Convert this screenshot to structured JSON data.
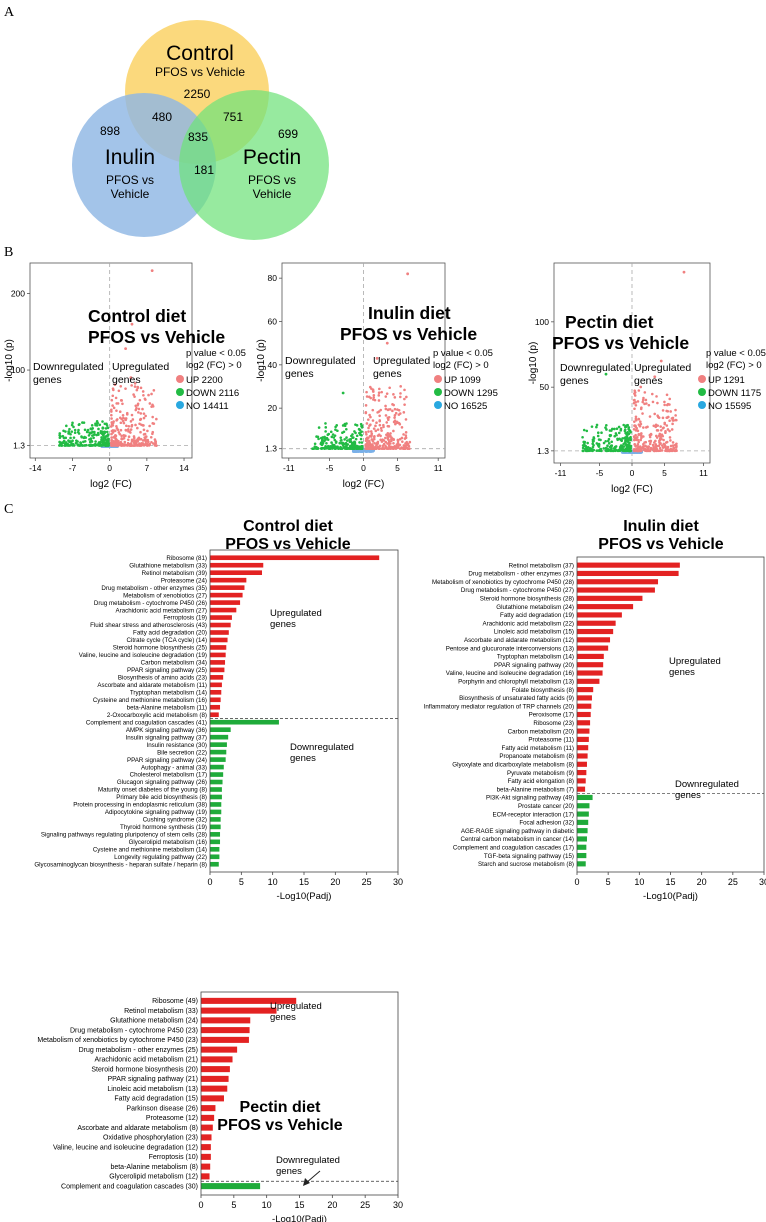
{
  "panel_labels": [
    "A",
    "B",
    "C"
  ],
  "venn": {
    "sets": [
      {
        "name": "Control",
        "sub": [
          "PFOS vs Vehicle"
        ],
        "color": "#fbd56f"
      },
      {
        "name": "Inulin",
        "sub": [
          "PFOS vs",
          "Vehicle"
        ],
        "color": "#8fb7e4"
      },
      {
        "name": "Pectin",
        "sub": [
          "PFOS vs",
          "Vehicle"
        ],
        "color": "#6fe27a"
      }
    ],
    "counts": {
      "control_only": "2250",
      "inulin_only": "898",
      "pectin_only": "699",
      "control_inulin": "480",
      "control_pectin": "751",
      "inulin_pectin": "181",
      "all": "835"
    }
  },
  "volcano_common": {
    "xlabel": "log2 (FC)",
    "ylabel": "-log10 (p)",
    "down_label": [
      "Downregulated",
      "genes"
    ],
    "up_label": [
      "Upregulated",
      "genes"
    ],
    "criteria": [
      "p value < 0.05",
      "log2 (FC) > 0"
    ],
    "up_color": "#f08080",
    "down_color": "#22bb44",
    "no_color": "#7ab0e8"
  },
  "volcanos": [
    {
      "title": [
        "Control diet",
        "PFOS vs Vehicle"
      ],
      "xticks": [
        -14,
        -7,
        0,
        7,
        14
      ],
      "xlim": [
        -15,
        15.5
      ],
      "yticks": [
        1.3,
        100,
        200
      ],
      "ylim": [
        -15,
        240
      ],
      "legend": [
        "UP 2200",
        "DOWN 2116",
        "NO 14411"
      ],
      "outliers": [
        [
          8,
          230
        ],
        [
          4.2,
          160
        ],
        [
          3,
          128
        ],
        [
          4,
          90
        ]
      ]
    },
    {
      "title": [
        "Inulin diet",
        "PFOS vs Vehicle"
      ],
      "xticks": [
        -11,
        -5,
        0,
        5,
        11
      ],
      "xlim": [
        -12,
        12
      ],
      "yticks": [
        1.3,
        20,
        40,
        60,
        80
      ],
      "ylim": [
        -3,
        87
      ],
      "legend": [
        "UP 1099",
        "DOWN 1295",
        "NO 16525"
      ],
      "outliers": [
        [
          6.5,
          82
        ],
        [
          3.5,
          50
        ],
        [
          2,
          43
        ],
        [
          -3,
          27
        ]
      ]
    },
    {
      "title": [
        "Pectin diet",
        "PFOS vs Vehicle"
      ],
      "xticks": [
        -11,
        -5,
        0,
        5,
        11
      ],
      "xlim": [
        -12,
        12
      ],
      "yticks": [
        1.3,
        50,
        100
      ],
      "ylim": [
        -8,
        145
      ],
      "legend": [
        "UP 1291",
        "DOWN 1175",
        "NO 15595"
      ],
      "outliers": [
        [
          8,
          138
        ],
        [
          4.5,
          70
        ],
        [
          3.5,
          58
        ],
        [
          -4,
          60
        ]
      ]
    }
  ],
  "chart_data": [
    {
      "type": "bar",
      "orientation": "horizontal",
      "title": "Control diet PFOS vs Vehicle",
      "xlabel": "-Log10(Padj)",
      "xlim": [
        0,
        30
      ],
      "xticks": [
        0,
        5,
        10,
        15,
        20,
        25,
        30
      ],
      "up_label": [
        "Upregulated",
        "genes"
      ],
      "down_label": [
        "Downregulated",
        "genes"
      ],
      "up_color": "#e32222",
      "down_color": "#1fab3a",
      "up": [
        {
          "label": "Ribosome (81)",
          "value": 27.0
        },
        {
          "label": "Glutathione metabolism (33)",
          "value": 8.5
        },
        {
          "label": "Retinol metabolism (39)",
          "value": 8.3
        },
        {
          "label": "Proteasome (24)",
          "value": 5.8
        },
        {
          "label": "Drug metabolism - other enzymes (35)",
          "value": 5.5
        },
        {
          "label": "Metabolism of xenobiotics  (27)",
          "value": 5.2
        },
        {
          "label": "Drug metabolism - cytochrome P450 (26)",
          "value": 4.8
        },
        {
          "label": "Arachidonic acid metabolism (27)",
          "value": 4.2
        },
        {
          "label": "Ferroptosis (19)",
          "value": 3.5
        },
        {
          "label": "Fluid shear stress and atherosclerosis (43)",
          "value": 3.3
        },
        {
          "label": "Fatty acid degradation (20)",
          "value": 3.0
        },
        {
          "label": "Citrate cycle (TCA cycle) (14)",
          "value": 2.8
        },
        {
          "label": "Steroid hormone biosynthesis (25)",
          "value": 2.6
        },
        {
          "label": "Valine, leucine and isoleucine degradation (19)",
          "value": 2.5
        },
        {
          "label": "Carbon metabolism (34)",
          "value": 2.4
        },
        {
          "label": "PPAR signaling pathway (25)",
          "value": 2.3
        },
        {
          "label": "Biosynthesis of amino acids (23)",
          "value": 2.1
        },
        {
          "label": "Ascorbate and aldarate metabolism (11)",
          "value": 1.9
        },
        {
          "label": "Tryptophan metabolism (14)",
          "value": 1.8
        },
        {
          "label": "Cysteine and methionine metabolism (16)",
          "value": 1.7
        },
        {
          "label": "beta-Alanine metabolism (11)",
          "value": 1.6
        },
        {
          "label": "2-Oxocarboxylic acid metabolism (8)",
          "value": 1.4
        }
      ],
      "down": [
        {
          "label": "Complement  and coagulation cascades (41)",
          "value": 11.0
        },
        {
          "label": "AMPK signaling pathway (36)",
          "value": 3.3
        },
        {
          "label": "Insulin signaling pathway (37)",
          "value": 2.9
        },
        {
          "label": "Insulin resistance (30)",
          "value": 2.7
        },
        {
          "label": "Bile secretion (22)",
          "value": 2.6
        },
        {
          "label": "PPAR signaling pathway (24)",
          "value": 2.5
        },
        {
          "label": "Autophagy - animal (33)",
          "value": 2.2
        },
        {
          "label": "Cholesterol metabolism (17)",
          "value": 2.1
        },
        {
          "label": "Glucagon signaling pathway (26)",
          "value": 2.0
        },
        {
          "label": "Maturity onset diabetes of the young (8)",
          "value": 1.9
        },
        {
          "label": "Primary bile acid biosynthesis (8)",
          "value": 1.9
        },
        {
          "label": "Protein processing in endoplasmic reticulum (38)",
          "value": 1.8
        },
        {
          "label": "Adipocytokine signaling pathway (19)",
          "value": 1.8
        },
        {
          "label": "Cushing syndrome (32)",
          "value": 1.7
        },
        {
          "label": "Thyroid hormone synthesis (19)",
          "value": 1.7
        },
        {
          "label": "Signaling pathways regulating pluripotency of stem cells (28)",
          "value": 1.6
        },
        {
          "label": "Glycerolipid metabolism (16)",
          "value": 1.6
        },
        {
          "label": "Cysteine and methionine metabolism (14)",
          "value": 1.5
        },
        {
          "label": "Longevity regulating pathway (22)",
          "value": 1.5
        },
        {
          "label": "Glycosaminoglycan biosynthesis - heparan sulfate / heparin (8)",
          "value": 1.4
        }
      ]
    },
    {
      "type": "bar",
      "orientation": "horizontal",
      "title": "Inulin diet PFOS vs Vehicle",
      "xlabel": "-Log10(Padj)",
      "xlim": [
        0,
        30
      ],
      "xticks": [
        0,
        5,
        10,
        15,
        20,
        25,
        30
      ],
      "up_label": [
        "Upregulated",
        "genes"
      ],
      "down_label": [
        "Downregulated",
        "genes"
      ],
      "up_color": "#e32222",
      "down_color": "#1fab3a",
      "up": [
        {
          "label": "Retinol metabolism (37)",
          "value": 16.5
        },
        {
          "label": "Drug metabolism - other enzymes (37)",
          "value": 16.3
        },
        {
          "label": "Metabolism of xenobiotics by cytochrome P450 (28)",
          "value": 13.0
        },
        {
          "label": "Drug metabolism - cytochrome P450 (27)",
          "value": 12.5
        },
        {
          "label": "Steroid hormone biosynthesis (28)",
          "value": 10.5
        },
        {
          "label": "Glutathione metabolism (24)",
          "value": 9.0
        },
        {
          "label": "Fatty acid degradation (19)",
          "value": 7.2
        },
        {
          "label": "Arachidonic acid metabolism (22)",
          "value": 6.2
        },
        {
          "label": "Linoleic acid metabolism (15)",
          "value": 5.8
        },
        {
          "label": "Ascorbate and aldarate metabolism (12)",
          "value": 5.3
        },
        {
          "label": "Pentose and glucuronate interconversions (13)",
          "value": 5.0
        },
        {
          "label": "Tryptophan metabolism (14)",
          "value": 4.3
        },
        {
          "label": "PPAR signaling pathway (20)",
          "value": 4.2
        },
        {
          "label": "Valine, leucine and isoleucine degradation (16)",
          "value": 4.1
        },
        {
          "label": "Porphyrin and chlorophyll metabolism (13)",
          "value": 3.6
        },
        {
          "label": "Folate biosynthesis (8)",
          "value": 2.6
        },
        {
          "label": "Biosynthesis of unsaturated fatty acids (9)",
          "value": 2.4
        },
        {
          "label": "Inflammatory mediator regulation of TRP channels (20)",
          "value": 2.3
        },
        {
          "label": "Peroxisome (17)",
          "value": 2.2
        },
        {
          "label": "Ribosome (23)",
          "value": 2.1
        },
        {
          "label": "Carbon metabolism (20)",
          "value": 2.0
        },
        {
          "label": "Proteasome (11)",
          "value": 1.9
        },
        {
          "label": "Fatty acid metabolism (11)",
          "value": 1.8
        },
        {
          "label": "Propanoate metabolism (8)",
          "value": 1.7
        },
        {
          "label": "Glyoxylate and dicarboxylate metabolism (8)",
          "value": 1.6
        },
        {
          "label": "Pyruvate metabolism (9)",
          "value": 1.5
        },
        {
          "label": "Fatty acid elongation (8)",
          "value": 1.4
        },
        {
          "label": "beta-Alanine metabolism (7)",
          "value": 1.3
        }
      ],
      "down": [
        {
          "label": "PI3K-Akt signaling pathway (49)",
          "value": 2.5
        },
        {
          "label": "Prostate cancer (20)",
          "value": 2.0
        },
        {
          "label": "ECM-receptor interaction (17)",
          "value": 1.9
        },
        {
          "label": "Focal adhesion (32)",
          "value": 1.8
        },
        {
          "label": "AGE-RAGE signaling pathway in diabetic",
          "value": 1.7
        },
        {
          "label": "Central carbon metabolism in cancer (14)",
          "value": 1.6
        },
        {
          "label": "Complement and coagulation cascades (17)",
          "value": 1.5
        },
        {
          "label": "TGF-beta signaling pathway (15)",
          "value": 1.5
        },
        {
          "label": "Starch and sucrose metabolism (8)",
          "value": 1.4
        }
      ]
    },
    {
      "type": "bar",
      "orientation": "horizontal",
      "title": "Pectin diet PFOS vs Vehicle",
      "xlabel": "-Log10(Padj)",
      "xlim": [
        0,
        30
      ],
      "xticks": [
        0,
        5,
        10,
        15,
        20,
        25,
        30
      ],
      "up_label": [
        "Upregulated",
        "genes"
      ],
      "down_label": [
        "Downregulated",
        "genes"
      ],
      "up_color": "#e32222",
      "down_color": "#1fab3a",
      "up": [
        {
          "label": "Ribosome (49)",
          "value": 14.5
        },
        {
          "label": "Retinol metabolism (33)",
          "value": 11.5
        },
        {
          "label": "Glutathione metabolism (24)",
          "value": 7.5
        },
        {
          "label": "Drug metabolism - cytochrome P450 (23)",
          "value": 7.4
        },
        {
          "label": "Metabolism of xenobiotics by cytochrome P450 (23)",
          "value": 7.3
        },
        {
          "label": "Drug metabolism - other enzymes (25)",
          "value": 5.5
        },
        {
          "label": "Arachidonic acid metabolism (21)",
          "value": 4.8
        },
        {
          "label": "Steroid hormone biosynthesis (20)",
          "value": 4.4
        },
        {
          "label": "PPAR signaling pathway (21)",
          "value": 4.2
        },
        {
          "label": "Linoleic acid metabolism (13)",
          "value": 4.0
        },
        {
          "label": "Fatty acid degradation (15)",
          "value": 3.5
        },
        {
          "label": "Parkinson disease (26)",
          "value": 2.2
        },
        {
          "label": "Proteasome (12)",
          "value": 2.0
        },
        {
          "label": "Ascorbate and aldarate metabolism (8)",
          "value": 1.8
        },
        {
          "label": "Oxidative phosphorylation (23)",
          "value": 1.6
        },
        {
          "label": "Valine, leucine and isoleucine degradation (12)",
          "value": 1.5
        },
        {
          "label": "Ferroptosis (10)",
          "value": 1.5
        },
        {
          "label": "beta-Alanine metabolism (8)",
          "value": 1.4
        },
        {
          "label": "Glycerolipid metabolism (12)",
          "value": 1.3
        }
      ],
      "down": [
        {
          "label": "Complement  and coagulation cascades (30)",
          "value": 9.0
        }
      ]
    }
  ]
}
